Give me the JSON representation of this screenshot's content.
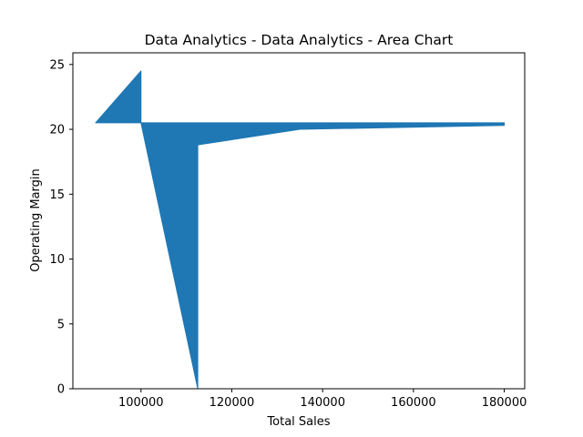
{
  "chart_data": {
    "type": "area",
    "title": "Data Analytics - Data Analytics - Area Chart",
    "xlabel": "Total Sales",
    "ylabel": "Operating Margin",
    "x": [
      90000,
      100000,
      100000,
      112500,
      112500,
      135000,
      180000
    ],
    "y": [
      20.5,
      24.5,
      20.5,
      0,
      18.8,
      20.0,
      20.3
    ],
    "fill_baseline": 20.5,
    "color": "#1f77b4",
    "xlim": [
      85000,
      184500
    ],
    "ylim": [
      0,
      25.9
    ],
    "xticks": [
      100000,
      120000,
      140000,
      160000,
      180000
    ],
    "yticks": [
      0,
      5,
      10,
      15,
      20,
      25
    ],
    "xtick_labels": [
      "100000",
      "120000",
      "140000",
      "160000",
      "180000"
    ],
    "ytick_labels": [
      "0",
      "5",
      "10",
      "15",
      "20",
      "25"
    ],
    "grid": false,
    "legend": "none"
  }
}
